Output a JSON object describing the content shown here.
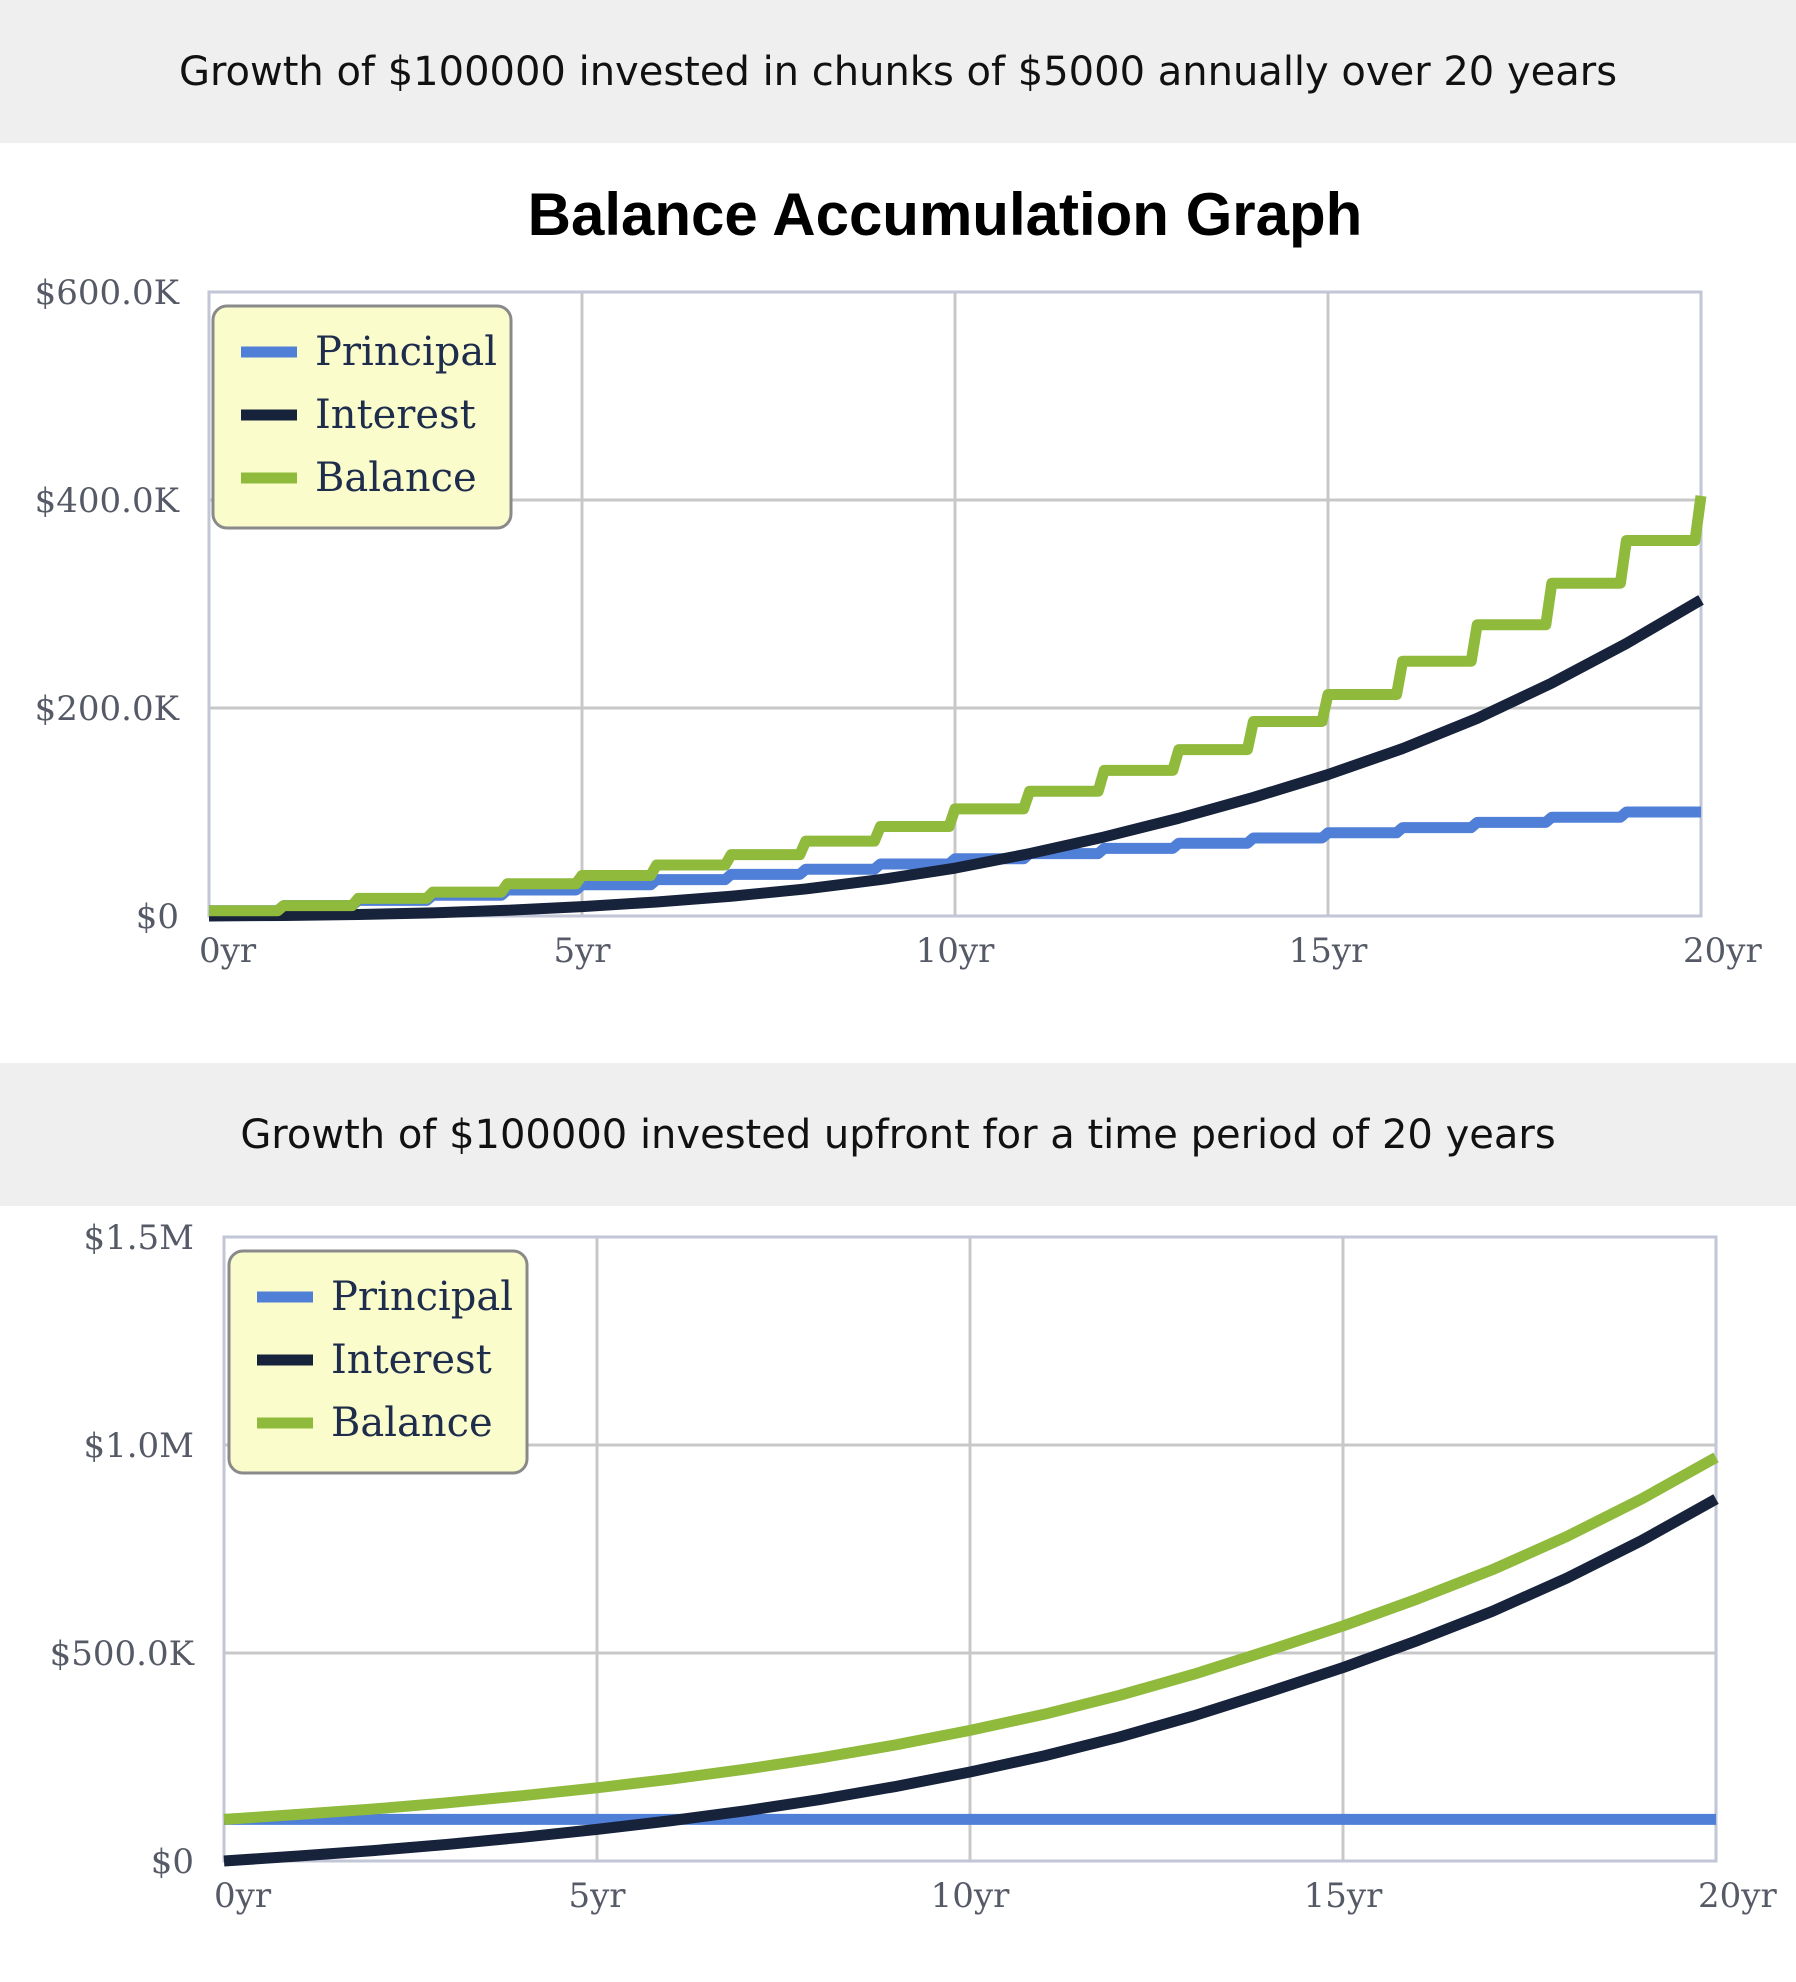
{
  "banners": {
    "first": "Growth of $100000 invested in chunks of $5000 annually over 20 years",
    "second": "Growth of $100000 invested upfront for a time period of 20 years"
  },
  "colors": {
    "principal": "#4f7fd6",
    "interest": "#17223b",
    "balance": "#8fba3c",
    "legend_bg": "#fbfccc",
    "grid": "#c8c8c8",
    "plot_border": "#c2c6d6"
  },
  "chart_data": [
    {
      "type": "line",
      "title": "Balance Accumulation Graph",
      "xlabel": "",
      "ylabel": "",
      "xlim": [
        0,
        20
      ],
      "ylim": [
        0,
        600000
      ],
      "x_tick_labels": [
        "0yr",
        "5yr",
        "10yr",
        "15yr",
        "20yr"
      ],
      "y_tick_labels": [
        "$0",
        "$200.0K",
        "$400.0K",
        "$600.0K"
      ],
      "grid": true,
      "legend_position": "top-left",
      "x": [
        0,
        1,
        2,
        3,
        4,
        5,
        6,
        7,
        8,
        9,
        10,
        11,
        12,
        13,
        14,
        15,
        16,
        17,
        18,
        19,
        20
      ],
      "series": [
        {
          "name": "Principal",
          "step": true,
          "values": [
            5000,
            10000,
            15000,
            20000,
            25000,
            30000,
            35000,
            40000,
            45000,
            50000,
            55000,
            60000,
            65000,
            70000,
            75000,
            80000,
            85000,
            90000,
            95000,
            100000,
            100000
          ]
        },
        {
          "name": "Interest",
          "step": false,
          "values": [
            0,
            500,
            1500,
            3000,
            5500,
            9000,
            13500,
            19000,
            26000,
            35000,
            46000,
            60000,
            76000,
            94000,
            114000,
            136000,
            161000,
            190000,
            224000,
            262000,
            304000
          ]
        },
        {
          "name": "Balance",
          "step": true,
          "values": [
            5000,
            10000,
            17000,
            23000,
            31000,
            39000,
            49000,
            59000,
            72000,
            86000,
            103000,
            120000,
            140000,
            160000,
            187000,
            213000,
            245000,
            280000,
            320000,
            361000,
            404000
          ]
        }
      ]
    },
    {
      "type": "line",
      "title": "",
      "xlabel": "",
      "ylabel": "",
      "xlim": [
        0,
        20
      ],
      "ylim": [
        0,
        1500000
      ],
      "x_tick_labels": [
        "0yr",
        "5yr",
        "10yr",
        "15yr",
        "20yr"
      ],
      "y_tick_labels": [
        "$0",
        "$500.0K",
        "$1.0M",
        "$1.5M"
      ],
      "grid": true,
      "legend_position": "top-left",
      "x": [
        0,
        1,
        2,
        3,
        4,
        5,
        6,
        7,
        8,
        9,
        10,
        11,
        12,
        13,
        14,
        15,
        16,
        17,
        18,
        19,
        20
      ],
      "series": [
        {
          "name": "Principal",
          "step": false,
          "values": [
            100000,
            100000,
            100000,
            100000,
            100000,
            100000,
            100000,
            100000,
            100000,
            100000,
            100000,
            100000,
            100000,
            100000,
            100000,
            100000,
            100000,
            100000,
            100000,
            100000,
            100000
          ]
        },
        {
          "name": "Interest",
          "step": false,
          "values": [
            0,
            12000,
            25000,
            40000,
            57000,
            76000,
            97000,
            121000,
            148000,
            179000,
            214000,
            253000,
            298000,
            349000,
            406000,
            465000,
            530000,
            600000,
            680000,
            770000,
            870000
          ]
        },
        {
          "name": "Balance",
          "step": false,
          "values": [
            100000,
            112000,
            125000,
            140000,
            157000,
            176000,
            197000,
            221000,
            248000,
            279000,
            314000,
            353000,
            398000,
            449000,
            506000,
            565000,
            630000,
            700000,
            780000,
            870000,
            970000
          ]
        }
      ]
    }
  ]
}
